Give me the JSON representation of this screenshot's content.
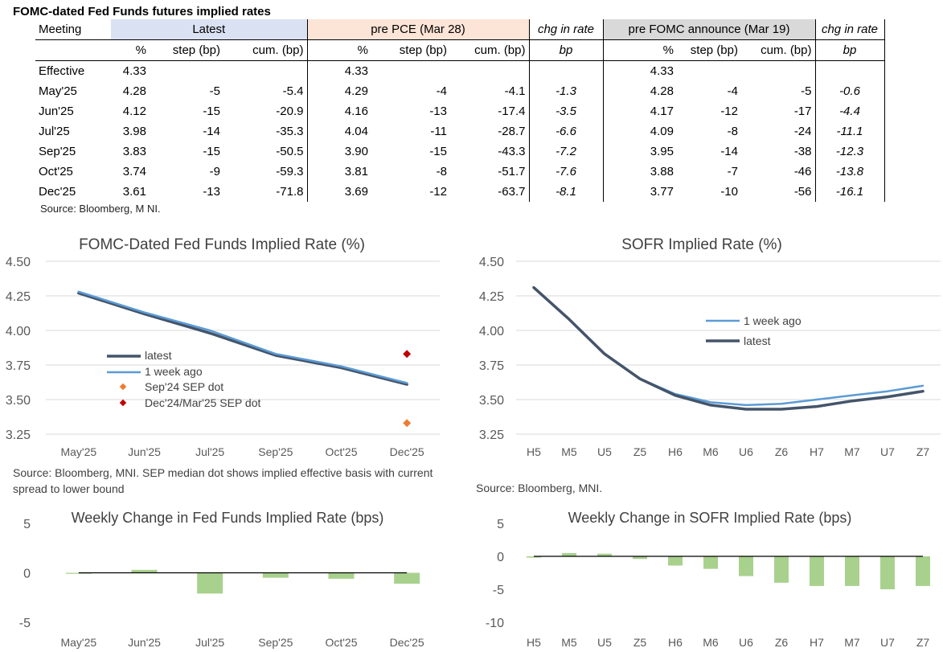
{
  "table": {
    "title": "FOMC-dated Fed Funds futures implied rates",
    "group_headers": {
      "meeting": "Meeting",
      "latest": "Latest",
      "pre_pce": "pre PCE (Mar 28)",
      "chg1": "chg in rate",
      "pre_fomc": "pre FOMC announce (Mar 19)",
      "chg2": "chg in rate"
    },
    "sub_headers": {
      "pct": "%",
      "step": "step (bp)",
      "cum": "cum. (bp)",
      "bp": "bp"
    },
    "rows": [
      {
        "meeting": "Effective",
        "l_pct": "4.33",
        "l_step": "",
        "l_cum": "",
        "p_pct": "4.33",
        "p_step": "",
        "p_cum": "",
        "chg1": "",
        "f_pct": "4.33",
        "f_step": "",
        "f_cum": "",
        "chg2": ""
      },
      {
        "meeting": "May'25",
        "l_pct": "4.28",
        "l_step": "-5",
        "l_cum": "-5.4",
        "p_pct": "4.29",
        "p_step": "-4",
        "p_cum": "-4.1",
        "chg1": "-1.3",
        "f_pct": "4.28",
        "f_step": "-4",
        "f_cum": "-5",
        "chg2": "-0.6"
      },
      {
        "meeting": "Jun'25",
        "l_pct": "4.12",
        "l_step": "-15",
        "l_cum": "-20.9",
        "p_pct": "4.16",
        "p_step": "-13",
        "p_cum": "-17.4",
        "chg1": "-3.5",
        "f_pct": "4.17",
        "f_step": "-12",
        "f_cum": "-17",
        "chg2": "-4.4"
      },
      {
        "meeting": "Jul'25",
        "l_pct": "3.98",
        "l_step": "-14",
        "l_cum": "-35.3",
        "p_pct": "4.04",
        "p_step": "-11",
        "p_cum": "-28.7",
        "chg1": "-6.6",
        "f_pct": "4.09",
        "f_step": "-8",
        "f_cum": "-24",
        "chg2": "-11.1"
      },
      {
        "meeting": "Sep'25",
        "l_pct": "3.83",
        "l_step": "-15",
        "l_cum": "-50.5",
        "p_pct": "3.90",
        "p_step": "-15",
        "p_cum": "-43.3",
        "chg1": "-7.2",
        "f_pct": "3.95",
        "f_step": "-14",
        "f_cum": "-38",
        "chg2": "-12.3"
      },
      {
        "meeting": "Oct'25",
        "l_pct": "3.74",
        "l_step": "-9",
        "l_cum": "-59.3",
        "p_pct": "3.81",
        "p_step": "-8",
        "p_cum": "-51.7",
        "chg1": "-7.6",
        "f_pct": "3.88",
        "f_step": "-7",
        "f_cum": "-46",
        "chg2": "-13.8"
      },
      {
        "meeting": "Dec'25",
        "l_pct": "3.61",
        "l_step": "-13",
        "l_cum": "-71.8",
        "p_pct": "3.69",
        "p_step": "-12",
        "p_cum": "-63.7",
        "chg1": "-8.1",
        "f_pct": "3.77",
        "f_step": "-10",
        "f_cum": "-56",
        "chg2": "-16.1"
      }
    ],
    "source": "Source: Bloomberg, M NI."
  },
  "sources": {
    "ff": "Source: Bloomberg, MNI. SEP median dot shows implied effective basis with current spread to lower bound",
    "sofr": "Source: Bloomberg, MNI."
  },
  "colors": {
    "latest": "#44546a",
    "week_ago": "#5b9bd5",
    "sep24": "#ed7d31",
    "dec24": "#c00000",
    "bars": "#a9d18e",
    "axis": "#d9d9d9",
    "tick": "#595959",
    "title": "#404040"
  },
  "chart_data": [
    {
      "id": "ff",
      "type": "line",
      "title": "FOMC-Dated Fed Funds Implied Rate (%)",
      "categories": [
        "May'25",
        "Jun'25",
        "Jul'25",
        "Sep'25",
        "Oct'25",
        "Dec'25"
      ],
      "ylim": [
        3.25,
        4.5
      ],
      "yticks": [
        "3.25",
        "3.50",
        "3.75",
        "4.00",
        "4.25",
        "4.50"
      ],
      "series": [
        {
          "name": "latest",
          "kind": "line",
          "values": [
            4.27,
            4.12,
            3.98,
            3.82,
            3.73,
            3.61
          ]
        },
        {
          "name": "1 week ago",
          "kind": "line",
          "values": [
            4.28,
            4.13,
            4.0,
            3.83,
            3.74,
            3.62
          ]
        },
        {
          "name": "Sep'24 SEP dot",
          "kind": "point",
          "cat_index": 5,
          "value": 3.33
        },
        {
          "name": "Dec'24/Mar'25 SEP dot",
          "kind": "point",
          "cat_index": 5,
          "value": 3.83
        }
      ],
      "legend": [
        "latest",
        "1 week ago",
        "Sep'24 SEP dot",
        "Dec'24/Mar'25 SEP dot"
      ]
    },
    {
      "id": "sofr",
      "type": "line",
      "title": "SOFR Implied Rate (%)",
      "categories": [
        "H5",
        "M5",
        "U5",
        "Z5",
        "H6",
        "M6",
        "U6",
        "Z6",
        "H7",
        "M7",
        "U7",
        "Z7"
      ],
      "ylim": [
        3.25,
        4.5
      ],
      "yticks": [
        "3.25",
        "3.50",
        "3.75",
        "4.00",
        "4.25",
        "4.50"
      ],
      "series": [
        {
          "name": "1 week ago",
          "values": [
            4.31,
            4.08,
            3.83,
            3.65,
            3.54,
            3.48,
            3.46,
            3.47,
            3.5,
            3.53,
            3.56,
            3.6
          ]
        },
        {
          "name": "latest",
          "values": [
            4.31,
            4.08,
            3.83,
            3.65,
            3.53,
            3.46,
            3.43,
            3.43,
            3.45,
            3.49,
            3.52,
            3.56
          ]
        }
      ],
      "legend": [
        "1 week ago",
        "latest"
      ]
    },
    {
      "id": "ffw",
      "type": "bar",
      "title": "Weekly Change in Fed Funds Implied Rate (bps)",
      "categories": [
        "May'25",
        "Jun'25",
        "Jul'25",
        "Sep'25",
        "Oct'25",
        "Dec'25"
      ],
      "values": [
        -0.1,
        0.3,
        -2.1,
        -0.5,
        -0.6,
        -1.1
      ],
      "ylim": [
        -5,
        5
      ],
      "yticks": [
        "-5",
        "0",
        "5"
      ]
    },
    {
      "id": "sofrw",
      "type": "bar",
      "title": "Weekly Change in SOFR Implied Rate (bps)",
      "categories": [
        "H5",
        "M5",
        "U5",
        "Z5",
        "H6",
        "M6",
        "U6",
        "Z6",
        "H7",
        "M7",
        "U7",
        "Z7"
      ],
      "values": [
        -0.2,
        0.5,
        0.4,
        -0.4,
        -1.4,
        -1.9,
        -3.0,
        -4.0,
        -4.5,
        -4.5,
        -5.0,
        -4.5
      ],
      "ylim": [
        -10,
        5
      ],
      "yticks": [
        "-10",
        "-5",
        "0",
        "5"
      ]
    }
  ]
}
